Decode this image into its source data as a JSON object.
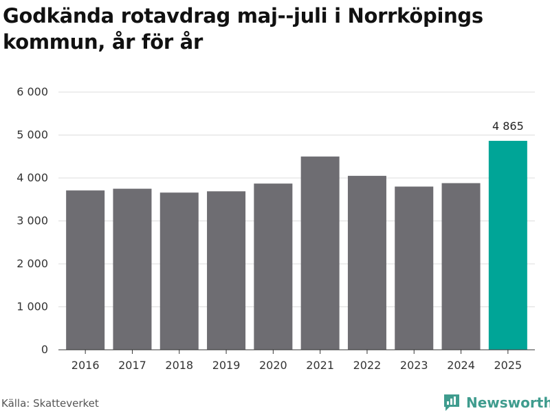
{
  "title": "Godkända rotavdrag maj--juli i Norrköpings kommun, år för år",
  "source": "Källa: Skatteverket",
  "brand": {
    "name": "Newsworthy",
    "icon": "newsworthy-logo-icon",
    "color": "#3f9c8e"
  },
  "chart_data": {
    "type": "bar",
    "title": "Godkända rotavdrag maj--juli i Norrköpings kommun, år för år",
    "xlabel": "",
    "ylabel": "",
    "categories": [
      "2016",
      "2017",
      "2018",
      "2019",
      "2020",
      "2021",
      "2022",
      "2023",
      "2024",
      "2025"
    ],
    "values": [
      3710,
      3750,
      3660,
      3690,
      3870,
      4500,
      4050,
      3800,
      3880,
      4865
    ],
    "ylim": [
      0,
      6000
    ],
    "yticks": [
      0,
      1000,
      2000,
      3000,
      4000,
      5000,
      6000
    ],
    "ytick_labels": [
      "0",
      "1 000",
      "2 000",
      "3 000",
      "4 000",
      "5 000",
      "6 000"
    ],
    "data_labels": [
      {
        "category": "2025",
        "text": "4 865"
      }
    ],
    "colors": {
      "default": "#6e6d72",
      "highlight": "#00a597",
      "highlight_category": "2025"
    },
    "grid": true,
    "legend": "none"
  }
}
